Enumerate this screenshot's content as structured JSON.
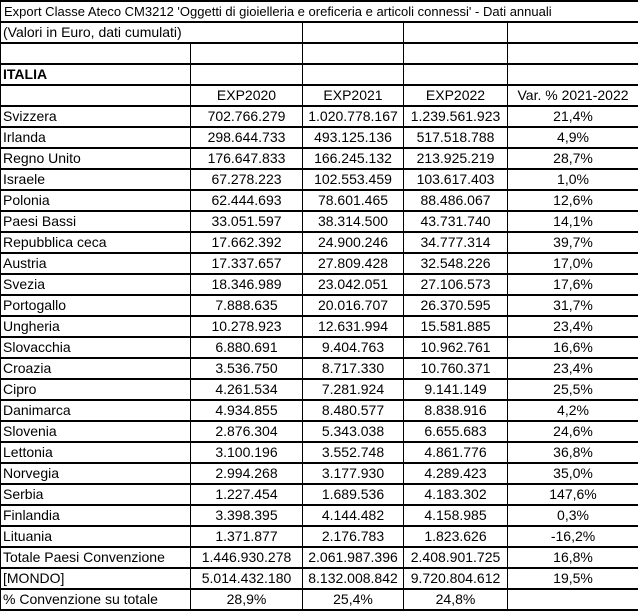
{
  "header": {
    "title": "Export Classe Ateco CM3212 'Oggetti di gioielleria e oreficeria e articoli connessi' - Dati annuali",
    "subtitle": "(Valori in Euro, dati cumulati)",
    "region": "ITALIA"
  },
  "table": {
    "column_headers": [
      "EXP2020",
      "EXP2021",
      "EXP2022",
      "Var. % 2021-2022"
    ],
    "rows": [
      {
        "label": "Svizzera",
        "values": [
          "702.766.279",
          "1.020.778.167",
          "1.239.561.923",
          "21,4%"
        ]
      },
      {
        "label": "Irlanda",
        "values": [
          "298.644.733",
          "493.125.136",
          "517.518.788",
          "4,9%"
        ]
      },
      {
        "label": "Regno Unito",
        "values": [
          "176.647.833",
          "166.245.132",
          "213.925.219",
          "28,7%"
        ]
      },
      {
        "label": "Israele",
        "values": [
          "67.278.223",
          "102.553.459",
          "103.617.403",
          "1,0%"
        ]
      },
      {
        "label": "Polonia",
        "values": [
          "62.444.693",
          "78.601.465",
          "88.486.067",
          "12,6%"
        ]
      },
      {
        "label": "Paesi Bassi",
        "values": [
          "33.051.597",
          "38.314.500",
          "43.731.740",
          "14,1%"
        ]
      },
      {
        "label": "Repubblica ceca",
        "values": [
          "17.662.392",
          "24.900.246",
          "34.777.314",
          "39,7%"
        ]
      },
      {
        "label": "Austria",
        "values": [
          "17.337.657",
          "27.809.428",
          "32.548.226",
          "17,0%"
        ]
      },
      {
        "label": "Svezia",
        "values": [
          "18.346.989",
          "23.042.051",
          "27.106.573",
          "17,6%"
        ]
      },
      {
        "label": "Portogallo",
        "values": [
          "7.888.635",
          "20.016.707",
          "26.370.595",
          "31,7%"
        ]
      },
      {
        "label": "Ungheria",
        "values": [
          "10.278.923",
          "12.631.994",
          "15.581.885",
          "23,4%"
        ]
      },
      {
        "label": "Slovacchia",
        "values": [
          "6.880.691",
          "9.404.763",
          "10.962.761",
          "16,6%"
        ]
      },
      {
        "label": "Croazia",
        "values": [
          "3.536.750",
          "8.717.330",
          "10.760.371",
          "23,4%"
        ]
      },
      {
        "label": "Cipro",
        "values": [
          "4.261.534",
          "7.281.924",
          "9.141.149",
          "25,5%"
        ]
      },
      {
        "label": "Danimarca",
        "values": [
          "4.934.855",
          "8.480.577",
          "8.838.916",
          "4,2%"
        ]
      },
      {
        "label": "Slovenia",
        "values": [
          "2.876.304",
          "5.343.038",
          "6.655.683",
          "24,6%"
        ]
      },
      {
        "label": "Lettonia",
        "values": [
          "3.100.196",
          "3.552.748",
          "4.861.776",
          "36,8%"
        ]
      },
      {
        "label": "Norvegia",
        "values": [
          "2.994.268",
          "3.177.930",
          "4.289.423",
          "35,0%"
        ]
      },
      {
        "label": "Serbia",
        "values": [
          "1.227.454",
          "1.689.536",
          "4.183.302",
          "147,6%"
        ]
      },
      {
        "label": "Finlandia",
        "values": [
          "3.398.395",
          "4.144.482",
          "4.158.985",
          "0,3%"
        ]
      },
      {
        "label": "Lituania",
        "values": [
          "1.371.877",
          "2.176.783",
          "1.823.626",
          "-16,2%"
        ]
      }
    ],
    "summary_rows": [
      {
        "label": "Totale Paesi Convenzione",
        "values": [
          "1.446.930.278",
          "2.061.987.396",
          "2.408.901.725",
          "16,8%"
        ]
      },
      {
        "label": "[MONDO]",
        "values": [
          "5.014.432.180",
          "8.132.008.842",
          "9.720.804.612",
          "19,5%"
        ]
      },
      {
        "label": "% Convenzione su totale",
        "values": [
          "28,9%",
          "25,4%",
          "24,8%",
          ""
        ]
      }
    ]
  },
  "colors": {
    "border": "#000000",
    "background": "#ffffff",
    "text": "#000000"
  }
}
